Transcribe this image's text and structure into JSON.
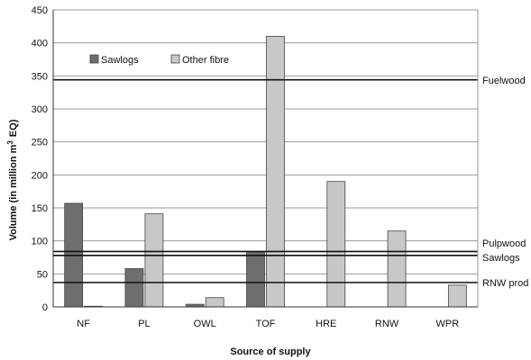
{
  "chart_data": {
    "type": "bar",
    "categories": [
      "NF",
      "PL",
      "OWL",
      "TOF",
      "HRE",
      "RNW",
      "WPR"
    ],
    "series": [
      {
        "name": "Sawlogs",
        "values": [
          157,
          58,
          4,
          84,
          0,
          0,
          0
        ],
        "color": "#6e6e6e"
      },
      {
        "name": "Other fibre",
        "values": [
          1,
          141,
          14,
          410,
          190,
          115,
          33
        ],
        "color": "#c8c8c8"
      }
    ],
    "reference_lines": [
      {
        "label": "Fuelwood",
        "value": 344
      },
      {
        "label": "Pulpwood",
        "value": 84
      },
      {
        "label": "Sawlogs",
        "value": 78
      },
      {
        "label": "RNW prod",
        "value": 37
      }
    ],
    "xlabel": "Source of supply",
    "ylabel": "Volume (in million m³ EQ)",
    "ylabel_parts": {
      "main": "Volume (in   million m",
      "sup": "3",
      "tail": "EQ)"
    },
    "ylim": [
      0,
      450
    ],
    "yticks": [
      0,
      50,
      100,
      150,
      200,
      250,
      300,
      350,
      400,
      450
    ],
    "grid": true,
    "legend_position": "top-left"
  }
}
